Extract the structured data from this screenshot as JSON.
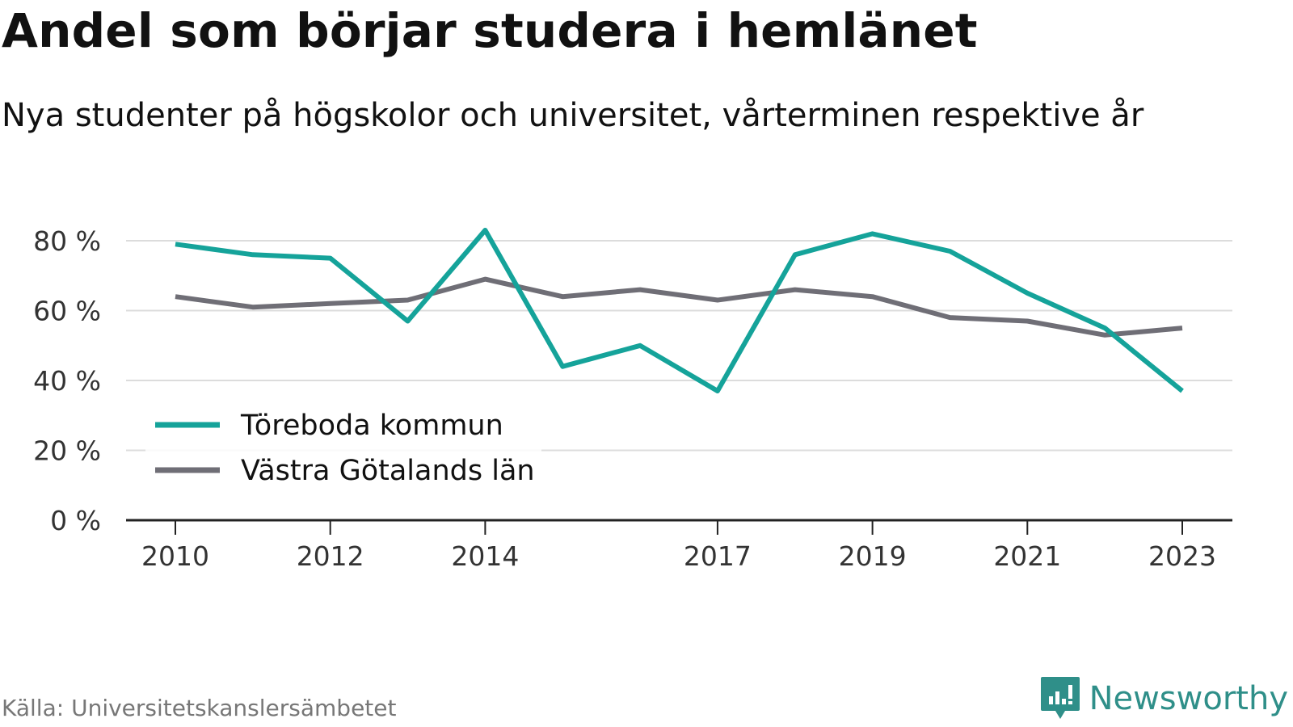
{
  "title": "Andel som börjar studera i hemlänet",
  "subtitle": "Nya studenter på högskolor och universitet, vårterminen respektive år",
  "source": "Källa: Universitetskanslersämbetet",
  "brand": {
    "name": "Newsworthy",
    "icon": "newsworthy-logo-icon"
  },
  "colors": {
    "series1": "#15a39a",
    "series2": "#6f6e76",
    "grid": "#dcdcdc",
    "axis": "#222222",
    "brand": "#2f8f89"
  },
  "chart_data": {
    "type": "line",
    "title": "Andel som börjar studera i hemlänet",
    "subtitle": "Nya studenter på högskolor och universitet, vårterminen respektive år",
    "x": [
      2010,
      2011,
      2012,
      2013,
      2014,
      2015,
      2016,
      2017,
      2018,
      2019,
      2020,
      2021,
      2022,
      2023
    ],
    "x_tick_labels": [
      "2010",
      "2012",
      "2014",
      "2017",
      "2019",
      "2021",
      "2023"
    ],
    "y_tick_labels": [
      "0 %",
      "20 %",
      "40 %",
      "60 %",
      "80 %"
    ],
    "ylim": [
      0,
      80
    ],
    "grid": true,
    "legend_position": "bottom-left",
    "series": [
      {
        "name": "Töreboda kommun",
        "color": "#15a39a",
        "values": [
          79,
          76,
          75,
          57,
          83,
          44,
          50,
          37,
          76,
          82,
          77,
          65,
          55,
          37
        ]
      },
      {
        "name": "Västra Götalands län",
        "color": "#6f6e76",
        "values": [
          64,
          61,
          62,
          63,
          69,
          64,
          66,
          63,
          66,
          64,
          58,
          57,
          53,
          55
        ]
      }
    ]
  }
}
